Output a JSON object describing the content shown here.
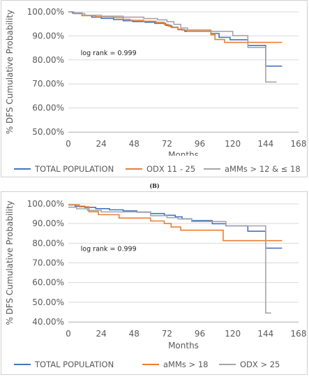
{
  "colors": {
    "total": "#4472c4",
    "orange": "#ed7d31",
    "gray": "#a5a5a5",
    "grid": "#d9d9d9",
    "axis": "#595959"
  },
  "chart_data": [
    {
      "type": "line",
      "step": true,
      "panel_label": "",
      "ylabel": "% DFS Cumulative Probability",
      "xlabel": "Months",
      "xlim": [
        0,
        168
      ],
      "ylim": [
        50,
        100
      ],
      "x_ticks": [
        0,
        24,
        48,
        72,
        96,
        120,
        144,
        168
      ],
      "y_ticks": [
        50,
        60,
        70,
        80,
        90,
        100
      ],
      "y_tick_labels": [
        "50.00%",
        "60.00%",
        "70.00%",
        "80.00%",
        "90.00%",
        "100.00%"
      ],
      "annotation": "log rank = 0.999",
      "annotation_at": [
        9,
        82
      ],
      "series": [
        {
          "name": "TOTAL POPULATION",
          "color": "#4472c4",
          "x": [
            0,
            3,
            10,
            17,
            24,
            33,
            40,
            47,
            56,
            63,
            71,
            75,
            80,
            85,
            104,
            110,
            118,
            131,
            144,
            145,
            156
          ],
          "y": [
            100,
            99.5,
            98.5,
            97.8,
            97.3,
            96.8,
            96.3,
            96,
            95.7,
            95.2,
            94.4,
            93.6,
            92.6,
            91.9,
            91,
            89.4,
            88.4,
            86,
            77.4,
            77.4,
            77.4
          ]
        },
        {
          "name": "ODX 11 - 25",
          "color": "#ed7d31",
          "x": [
            0,
            4,
            10,
            20,
            33,
            40,
            45,
            55,
            64,
            70,
            73,
            76,
            80,
            83,
            104,
            107,
            114,
            131,
            156
          ],
          "y": [
            100,
            99.3,
            98.4,
            98,
            97.6,
            96.9,
            96.5,
            96.1,
            95.6,
            94.8,
            94,
            93.5,
            92.8,
            92.4,
            90.5,
            88.5,
            87.3,
            87.3,
            87.3
          ]
        },
        {
          "name": "aMMs > 12 & ≤ 18",
          "color": "#a5a5a5",
          "x": [
            0,
            4,
            12,
            24,
            40,
            55,
            65,
            72,
            77,
            82,
            87,
            104,
            120,
            131,
            144,
            152
          ],
          "y": [
            100,
            99.3,
            98.6,
            98.2,
            97.8,
            97.2,
            96.7,
            95.9,
            94.8,
            93.3,
            91.9,
            91.9,
            90.1,
            85.2,
            70.8,
            70.8
          ]
        }
      ]
    },
    {
      "type": "line",
      "step": true,
      "panel_label": "(B)",
      "ylabel": "% DFS Cumulative Probability",
      "xlabel": "Months",
      "xlim": [
        0,
        168
      ],
      "ylim": [
        40,
        100
      ],
      "x_ticks": [
        0,
        24,
        48,
        72,
        96,
        120,
        144,
        168
      ],
      "y_ticks": [
        40,
        50,
        60,
        70,
        80,
        90,
        100
      ],
      "y_tick_labels": [
        "40.00%",
        "50.00%",
        "60.00%",
        "70.00%",
        "80.00%",
        "90.00%",
        "100.00%"
      ],
      "annotation": "log rank = 0.999",
      "annotation_at": [
        9,
        76
      ],
      "series": [
        {
          "name": "TOTAL POPULATION",
          "color": "#4472c4",
          "x": [
            0,
            5,
            12,
            20,
            30,
            40,
            50,
            60,
            70,
            78,
            83,
            90,
            105,
            115,
            131,
            144,
            156
          ],
          "y": [
            99.5,
            98.8,
            98.2,
            97.6,
            97,
            96.4,
            95.8,
            95.1,
            94.2,
            93.4,
            92.4,
            91.5,
            89.9,
            88.8,
            86.1,
            77.5,
            77.5
          ]
        },
        {
          "name": "aMMs > 18",
          "color": "#ed7d31",
          "x": [
            0,
            8,
            15,
            22,
            37,
            60,
            70,
            75,
            82,
            113,
            130,
            156
          ],
          "y": [
            99.5,
            98.5,
            96,
            94.5,
            92.8,
            91.3,
            90,
            88.2,
            86.6,
            81.3,
            81.3,
            81.3
          ]
        },
        {
          "name": "ODX > 25",
          "color": "#a5a5a5",
          "x": [
            0,
            6,
            14,
            24,
            60,
            72,
            80,
            90,
            115,
            131,
            144,
            148
          ],
          "y": [
            98.3,
            97.5,
            96.7,
            95.9,
            94,
            93,
            92.3,
            91,
            88.8,
            88.8,
            44.5,
            44.5
          ]
        }
      ]
    }
  ]
}
